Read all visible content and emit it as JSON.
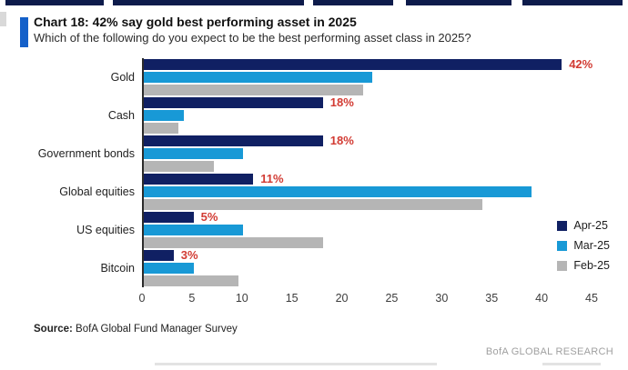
{
  "header": {
    "title": "Chart 18: 42% say gold best performing asset in 2025",
    "subtitle": "Which of the following do you expect to be the best performing asset class in 2025?"
  },
  "chart_data": {
    "type": "bar",
    "orientation": "horizontal",
    "title": "Chart 18: 42% say gold best performing asset in 2025",
    "subtitle": "Which of the following do you expect to be the best performing asset class in 2025?",
    "categories": [
      "Gold",
      "Cash",
      "Government bonds",
      "Global equities",
      "US equities",
      "Bitcoin"
    ],
    "series": [
      {
        "name": "Apr-25",
        "color": "#102063",
        "values": [
          42,
          18,
          18,
          11,
          5,
          3
        ]
      },
      {
        "name": "Mar-25",
        "color": "#1899d6",
        "values": [
          23,
          4,
          10,
          39,
          10,
          5
        ]
      },
      {
        "name": "Feb-25",
        "color": "#b5b5b5",
        "values": [
          22,
          3.5,
          7,
          34,
          18,
          9.5
        ]
      }
    ],
    "value_labels": {
      "series": "Apr-25",
      "labels": [
        "42%",
        "18%",
        "18%",
        "11%",
        "5%",
        "3%"
      ],
      "color": "#d23b33"
    },
    "xlim": [
      0,
      45
    ],
    "x_ticks": [
      0,
      5,
      10,
      15,
      20,
      25,
      30,
      35,
      40,
      45
    ],
    "grid": false,
    "legend_position": "right"
  },
  "footer": {
    "source_label": "Source:",
    "source_text": " BofA Global Fund Manager Survey",
    "brand": "BofA GLOBAL RESEARCH"
  },
  "colors": {
    "accent_bar": "#1460c9",
    "apr_navy": "#102063",
    "mar_blue": "#1899d6",
    "feb_gray": "#b5b5b5",
    "value_label_red": "#d23b33",
    "axis_line": "#2b2b2b",
    "brand_gray": "#a0a0a0"
  }
}
